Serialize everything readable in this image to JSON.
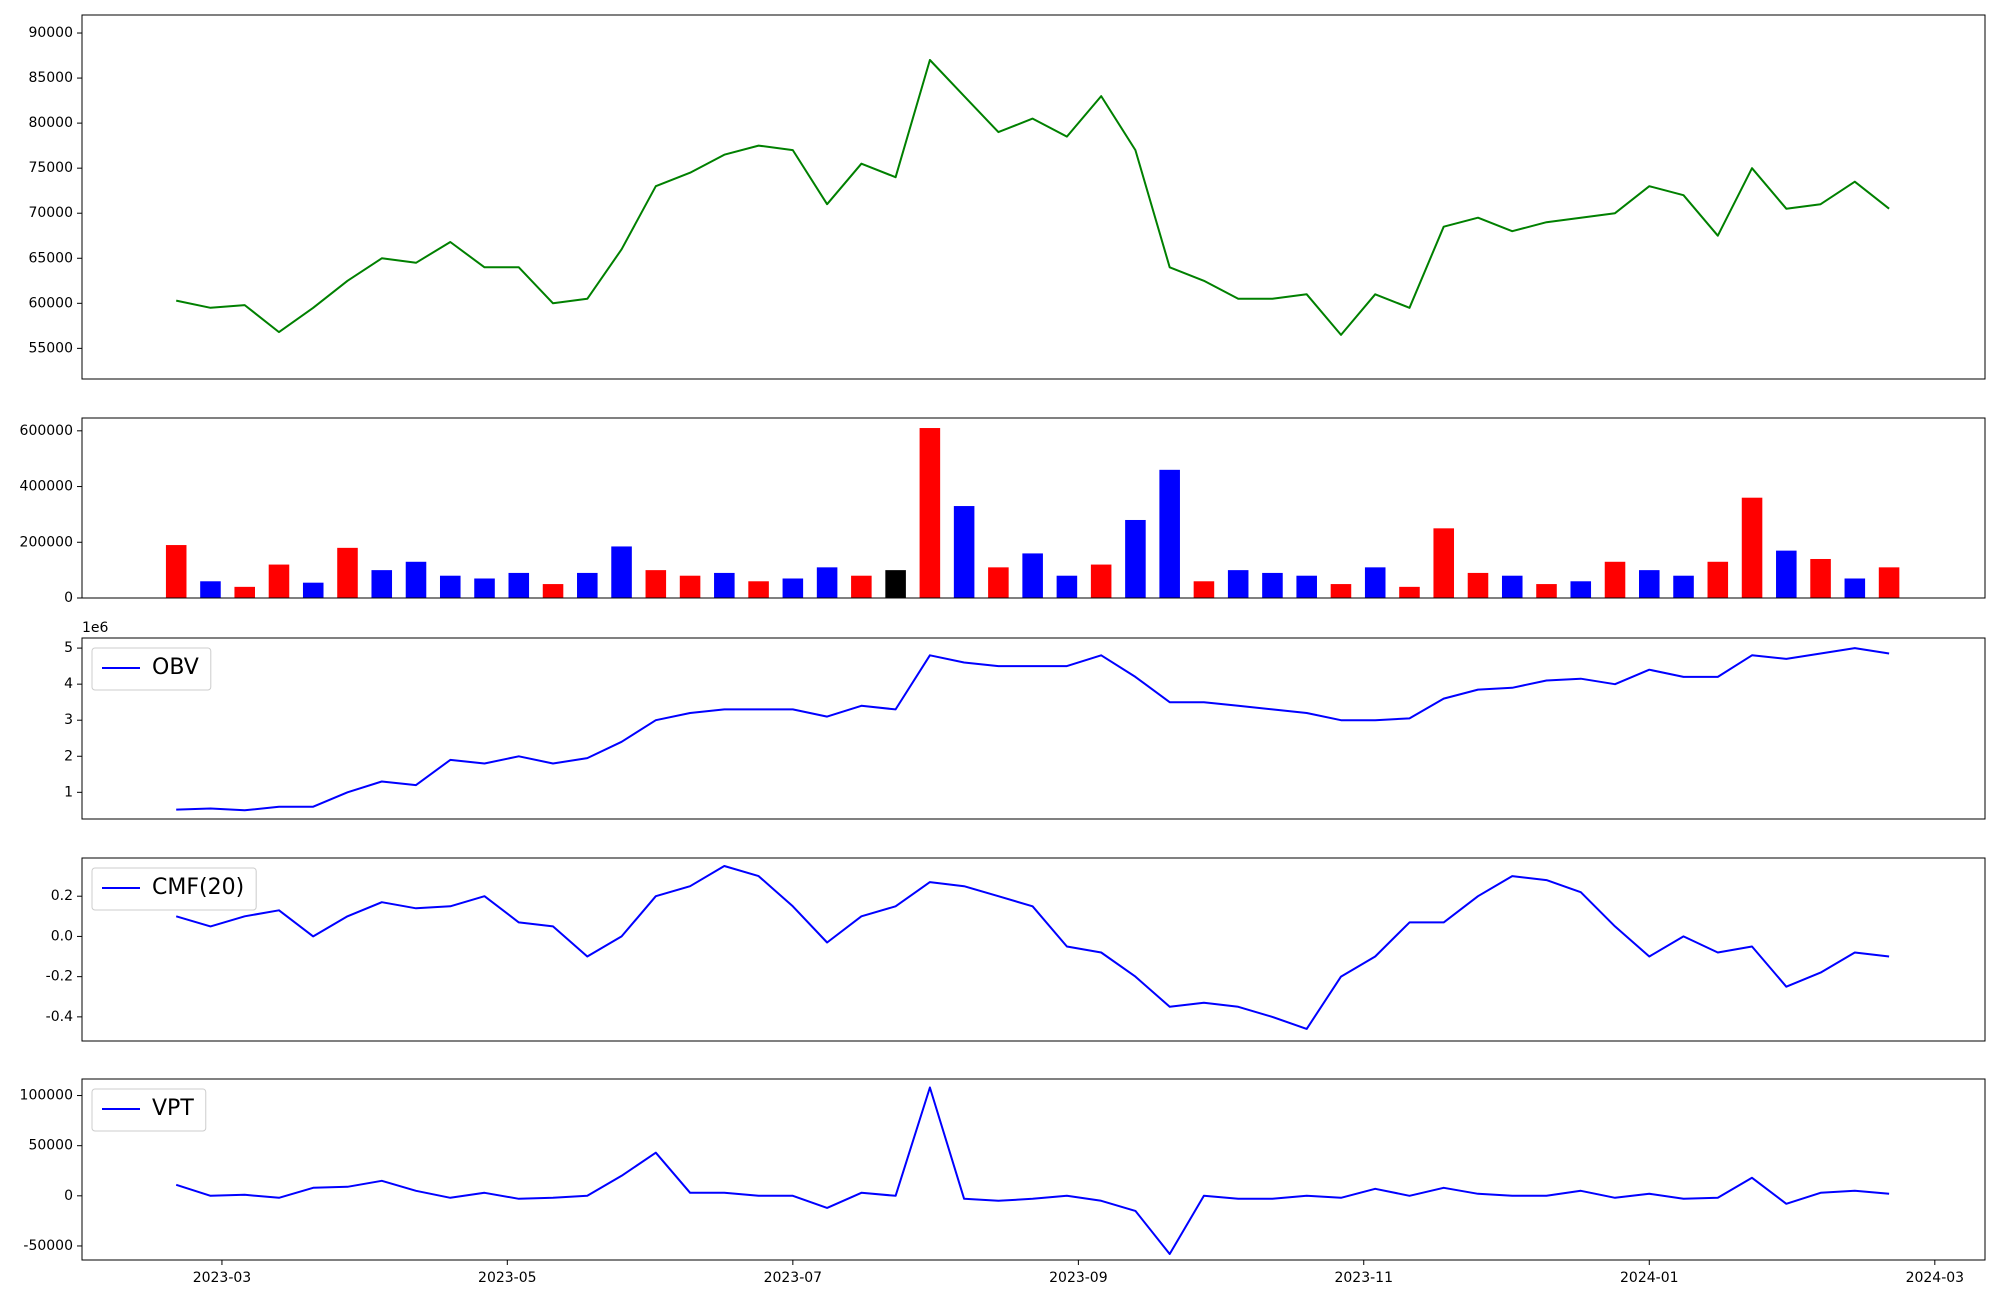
{
  "chart_data": [
    {
      "type": "line",
      "x": [
        2023.14,
        2023.16,
        2023.18,
        2023.2,
        2023.22,
        2023.24,
        2023.26,
        2023.28,
        2023.3,
        2023.32,
        2023.34,
        2023.36,
        2023.38,
        2023.4,
        2023.42,
        2023.44,
        2023.46,
        2023.48,
        2023.5,
        2023.52,
        2023.54,
        2023.56,
        2023.58,
        2023.6,
        2023.62,
        2023.64,
        2023.66,
        2023.68,
        2023.7,
        2023.72,
        2023.74,
        2023.76,
        2023.78,
        2023.8,
        2023.82,
        2023.84,
        2023.86,
        2023.88,
        2023.9,
        2023.92,
        2023.94,
        2023.96,
        2023.98,
        2024,
        2024.02,
        2024.04,
        2024.06,
        2024.08,
        2024.1,
        2024.12,
        2024.14
      ],
      "xlim": [
        2023.085,
        2024.196
      ],
      "series": [
        {
          "color": "#008000",
          "values": [
            60300,
            59500,
            59800,
            56800,
            59500,
            62500,
            65000,
            64500,
            66800,
            64000,
            64000,
            60000,
            60500,
            66000,
            73000,
            74500,
            76500,
            77500,
            77000,
            71000,
            75500,
            74000,
            87000,
            83000,
            79000,
            80500,
            78500,
            83000,
            77000,
            64000,
            62500,
            60500,
            60500,
            61000,
            56500,
            61000,
            59500,
            68500,
            69500,
            68000,
            69000,
            69500,
            70000,
            73000,
            72000,
            67500,
            75000,
            70500,
            71000,
            73500,
            70500
          ]
        }
      ],
      "ylim": [
        51600,
        92000
      ],
      "yticks": [
        55000,
        60000,
        65000,
        70000,
        75000,
        80000,
        85000,
        90000
      ]
    },
    {
      "type": "bar",
      "x": [
        2023.14,
        2023.16,
        2023.18,
        2023.2,
        2023.22,
        2023.24,
        2023.26,
        2023.28,
        2023.3,
        2023.32,
        2023.34,
        2023.36,
        2023.38,
        2023.4,
        2023.42,
        2023.44,
        2023.46,
        2023.48,
        2023.5,
        2023.52,
        2023.54,
        2023.56,
        2023.58,
        2023.6,
        2023.62,
        2023.64,
        2023.66,
        2023.68,
        2023.7,
        2023.72,
        2023.74,
        2023.76,
        2023.78,
        2023.8,
        2023.82,
        2023.84,
        2023.86,
        2023.88,
        2023.9,
        2023.92,
        2023.94,
        2023.96,
        2023.98,
        2024,
        2024.02,
        2024.04,
        2024.06,
        2024.08,
        2024.1,
        2024.12,
        2024.14
      ],
      "xlim": [
        2023.085,
        2024.196
      ],
      "values": [
        190000,
        60000,
        40000,
        120000,
        55000,
        180000,
        100000,
        130000,
        80000,
        70000,
        90000,
        50000,
        90000,
        185000,
        100000,
        80000,
        90000,
        60000,
        70000,
        110000,
        80000,
        100000,
        610000,
        330000,
        110000,
        160000,
        80000,
        120000,
        280000,
        460000,
        60000,
        100000,
        90000,
        80000,
        50000,
        110000,
        40000,
        250000,
        90000,
        80000,
        50000,
        60000,
        130000,
        100000,
        80000,
        130000,
        360000,
        170000,
        140000,
        70000,
        110000
      ],
      "colors": [
        "#ff0000",
        "#0000ff",
        "#ff0000",
        "#ff0000",
        "#0000ff",
        "#ff0000",
        "#0000ff",
        "#0000ff",
        "#0000ff",
        "#0000ff",
        "#0000ff",
        "#ff0000",
        "#0000ff",
        "#0000ff",
        "#ff0000",
        "#ff0000",
        "#0000ff",
        "#ff0000",
        "#0000ff",
        "#0000ff",
        "#ff0000",
        "#000000",
        "#ff0000",
        "#0000ff",
        "#ff0000",
        "#0000ff",
        "#0000ff",
        "#ff0000",
        "#0000ff",
        "#0000ff",
        "#ff0000",
        "#0000ff",
        "#0000ff",
        "#0000ff",
        "#ff0000",
        "#0000ff",
        "#ff0000",
        "#ff0000",
        "#ff0000",
        "#0000ff",
        "#ff0000",
        "#0000ff",
        "#ff0000",
        "#0000ff",
        "#0000ff",
        "#ff0000",
        "#ff0000",
        "#0000ff",
        "#ff0000",
        "#0000ff",
        "#ff0000"
      ],
      "ylim": [
        0,
        646000
      ],
      "yticks": [
        0,
        200000,
        400000,
        600000
      ]
    },
    {
      "type": "line",
      "x": [
        2023.14,
        2023.16,
        2023.18,
        2023.2,
        2023.22,
        2023.24,
        2023.26,
        2023.28,
        2023.3,
        2023.32,
        2023.34,
        2023.36,
        2023.38,
        2023.4,
        2023.42,
        2023.44,
        2023.46,
        2023.48,
        2023.5,
        2023.52,
        2023.54,
        2023.56,
        2023.58,
        2023.6,
        2023.62,
        2023.64,
        2023.66,
        2023.68,
        2023.7,
        2023.72,
        2023.74,
        2023.76,
        2023.78,
        2023.8,
        2023.82,
        2023.84,
        2023.86,
        2023.88,
        2023.9,
        2023.92,
        2023.94,
        2023.96,
        2023.98,
        2024,
        2024.02,
        2024.04,
        2024.06,
        2024.08,
        2024.1,
        2024.12,
        2024.14
      ],
      "xlim": [
        2023.085,
        2024.196
      ],
      "series": [
        {
          "name": "OBV",
          "color": "#0000ff",
          "values": [
            0.52,
            0.55,
            0.5,
            0.6,
            0.6,
            1.0,
            1.3,
            1.2,
            1.9,
            1.8,
            2.0,
            1.8,
            1.95,
            2.4,
            3.0,
            3.2,
            3.3,
            3.3,
            3.3,
            3.1,
            3.4,
            3.3,
            4.8,
            4.6,
            4.5,
            4.5,
            4.5,
            4.8,
            4.2,
            3.5,
            3.5,
            3.4,
            3.3,
            3.2,
            3.0,
            3.0,
            3.05,
            3.6,
            3.85,
            3.9,
            4.1,
            4.15,
            4.0,
            4.4,
            4.2,
            4.2,
            4.8,
            4.7,
            4.85,
            5.0,
            4.85
          ]
        }
      ],
      "ylim": [
        0.26,
        5.28
      ],
      "yticks": [
        1,
        2,
        3,
        4,
        5
      ],
      "offset_label": "1e6",
      "legend": "upper left"
    },
    {
      "type": "line",
      "x": [
        2023.14,
        2023.16,
        2023.18,
        2023.2,
        2023.22,
        2023.24,
        2023.26,
        2023.28,
        2023.3,
        2023.32,
        2023.34,
        2023.36,
        2023.38,
        2023.4,
        2023.42,
        2023.44,
        2023.46,
        2023.48,
        2023.5,
        2023.52,
        2023.54,
        2023.56,
        2023.58,
        2023.6,
        2023.62,
        2023.64,
        2023.66,
        2023.68,
        2023.7,
        2023.72,
        2023.74,
        2023.76,
        2023.78,
        2023.8,
        2023.82,
        2023.84,
        2023.86,
        2023.88,
        2023.9,
        2023.92,
        2023.94,
        2023.96,
        2023.98,
        2024,
        2024.02,
        2024.04,
        2024.06,
        2024.08,
        2024.1,
        2024.12,
        2024.14
      ],
      "xlim": [
        2023.085,
        2024.196
      ],
      "series": [
        {
          "name": "CMF(20)",
          "color": "#0000ff",
          "values": [
            0.1,
            0.05,
            0.1,
            0.13,
            0,
            0.1,
            0.17,
            0.14,
            0.15,
            0.2,
            0.07,
            0.05,
            -0.1,
            0,
            0.2,
            0.25,
            0.35,
            0.3,
            0.15,
            -0.03,
            0.1,
            0.15,
            0.27,
            0.25,
            0.2,
            0.15,
            -0.05,
            -0.08,
            -0.2,
            -0.35,
            -0.33,
            -0.35,
            -0.4,
            -0.46,
            -0.2,
            -0.1,
            0.07,
            0.07,
            0.2,
            0.3,
            0.28,
            0.22,
            0.05,
            -0.1,
            0,
            -0.08,
            -0.05,
            -0.25,
            -0.18,
            -0.08,
            -0.1
          ]
        }
      ],
      "ylim": [
        -0.52,
        0.39
      ],
      "yticks": [
        -0.4,
        -0.2,
        {
          "value": 0,
          "label": "0.0"
        },
        0.2
      ],
      "legend": "upper left"
    },
    {
      "type": "line",
      "x": [
        2023.14,
        2023.16,
        2023.18,
        2023.2,
        2023.22,
        2023.24,
        2023.26,
        2023.28,
        2023.3,
        2023.32,
        2023.34,
        2023.36,
        2023.38,
        2023.4,
        2023.42,
        2023.44,
        2023.46,
        2023.48,
        2023.5,
        2023.52,
        2023.54,
        2023.56,
        2023.58,
        2023.6,
        2023.62,
        2023.64,
        2023.66,
        2023.68,
        2023.7,
        2023.72,
        2023.74,
        2023.76,
        2023.78,
        2023.8,
        2023.82,
        2023.84,
        2023.86,
        2023.88,
        2023.9,
        2023.92,
        2023.94,
        2023.96,
        2023.98,
        2024,
        2024.02,
        2024.04,
        2024.06,
        2024.08,
        2024.1,
        2024.12,
        2024.14
      ],
      "xlim": [
        2023.085,
        2024.196
      ],
      "xticks": [
        {
          "value": 2023.1667,
          "label": "2023-03"
        },
        {
          "value": 2023.3333,
          "label": "2023-05"
        },
        {
          "value": 2023.5,
          "label": "2023-07"
        },
        {
          "value": 2023.6667,
          "label": "2023-09"
        },
        {
          "value": 2023.8333,
          "label": "2023-11"
        },
        {
          "value": 2024.0,
          "label": "2024-01"
        },
        {
          "value": 2024.1667,
          "label": "2024-03"
        }
      ],
      "series": [
        {
          "name": "VPT",
          "color": "#0000ff",
          "values": [
            11000,
            0,
            1000,
            -2000,
            8000,
            9000,
            15000,
            5000,
            -2000,
            3000,
            -3000,
            -2000,
            0,
            20000,
            43000,
            3000,
            3000,
            0,
            0,
            -12000,
            3000,
            0,
            108000,
            -3000,
            -5000,
            -3000,
            0,
            -5000,
            -15000,
            -58000,
            0,
            -3000,
            -3000,
            0,
            -2000,
            7000,
            0,
            8000,
            2000,
            0,
            0,
            5000,
            -2000,
            2000,
            -3000,
            -2000,
            18000,
            -8000,
            3000,
            5000,
            2000
          ]
        }
      ],
      "ylim": [
        -64000,
        116500
      ],
      "yticks": [
        -50000,
        0,
        50000,
        100000
      ],
      "legend": "upper left"
    }
  ]
}
